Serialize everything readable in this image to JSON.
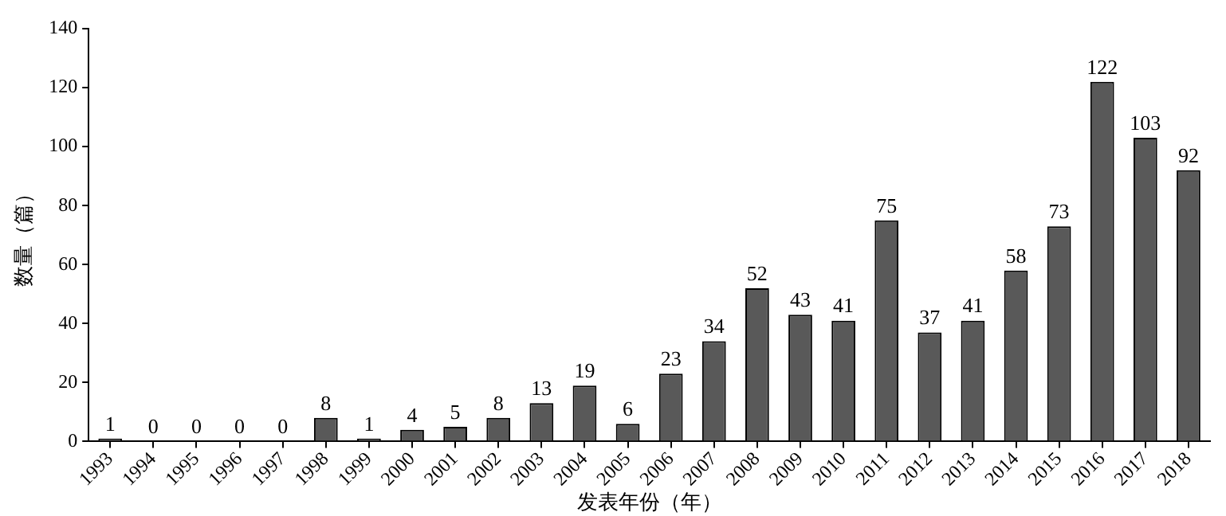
{
  "chart_data": {
    "type": "bar",
    "xlabel": "发表年份（年）",
    "ylabel": "数量（篇）",
    "categories": [
      "1993",
      "1994",
      "1995",
      "1996",
      "1997",
      "1998",
      "1999",
      "2000",
      "2001",
      "2002",
      "2003",
      "2004",
      "2005",
      "2006",
      "2007",
      "2008",
      "2009",
      "2010",
      "2011",
      "2012",
      "2013",
      "2014",
      "2015",
      "2016",
      "2017",
      "2018"
    ],
    "values": [
      1,
      0,
      0,
      0,
      0,
      8,
      1,
      4,
      5,
      8,
      13,
      19,
      6,
      23,
      34,
      52,
      43,
      41,
      75,
      37,
      41,
      58,
      73,
      122,
      103,
      92
    ],
    "color": "#595959",
    "ylim": [
      0,
      140
    ],
    "yticks": [
      0,
      20,
      40,
      60,
      80,
      100,
      120,
      140
    ],
    "grid": false,
    "legend": false,
    "data_labels": true
  }
}
